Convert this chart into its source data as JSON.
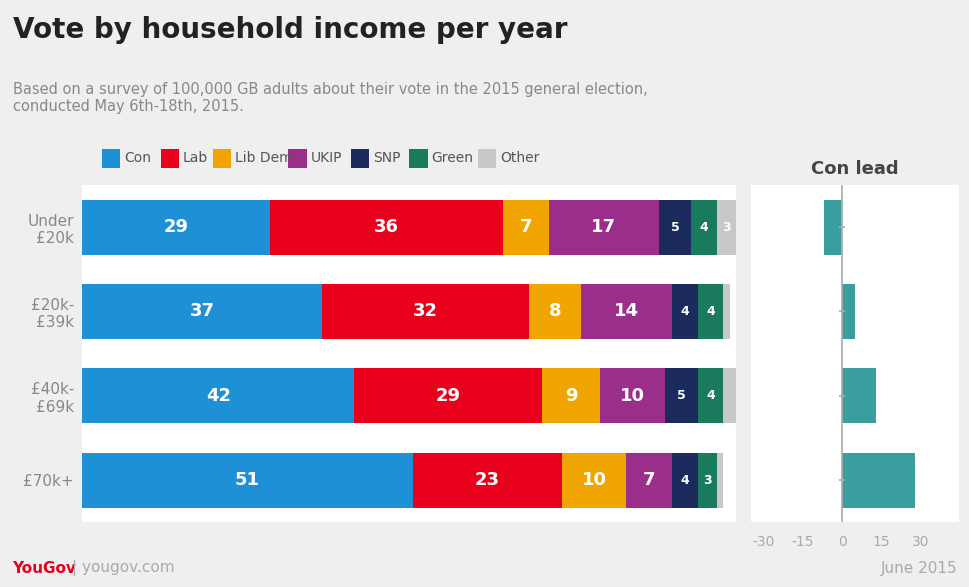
{
  "title": "Vote by household income per year",
  "subtitle": "Based on a survey of 100,000 GB adults about their vote in the 2015 general election,\nconducted May 6th-18th, 2015.",
  "categories": [
    "Under\n£20k",
    "£20k-\n£39k",
    "£40k-\n£69k",
    "£70k+"
  ],
  "parties": [
    "Con",
    "Lab",
    "Lib Dem",
    "UKIP",
    "SNP",
    "Green",
    "Other"
  ],
  "colors": [
    "#1E90D6",
    "#E8001C",
    "#F0A500",
    "#9B2D8B",
    "#1B2B5E",
    "#1A7A5E",
    "#C8C8C8"
  ],
  "data": [
    [
      29,
      36,
      7,
      17,
      5,
      4,
      3
    ],
    [
      37,
      32,
      8,
      14,
      4,
      4,
      1
    ],
    [
      42,
      29,
      9,
      10,
      5,
      4,
      2
    ],
    [
      51,
      23,
      10,
      7,
      4,
      3,
      1
    ]
  ],
  "con_lead": [
    -7,
    5,
    13,
    28
  ],
  "con_lead_title": "Con lead",
  "con_lead_color": "#3A9E9E",
  "xlim_main": [
    0,
    101
  ],
  "xlim_lead": [
    -35,
    45
  ],
  "xticks_lead": [
    -30,
    -15,
    0,
    15,
    30
  ],
  "background_color": "#EFEFEF",
  "yougov_color": "#E8001C",
  "date_text": "June 2015",
  "footer_yougov": "YouGov",
  "footer_rest": "| yougov.com"
}
